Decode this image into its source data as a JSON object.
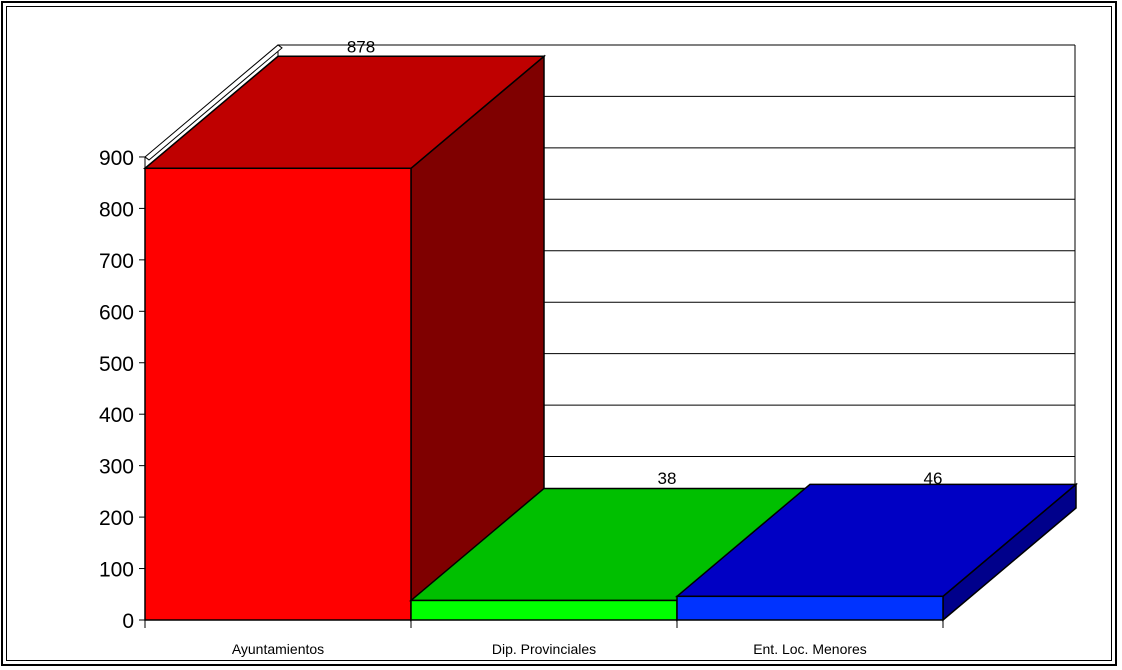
{
  "chart_data": {
    "type": "bar",
    "style": "3d",
    "categories": [
      "Ayuntamientos",
      "Dip. Provinciales",
      "Ent. Loc. Menores"
    ],
    "values": [
      878,
      38,
      46
    ],
    "data_labels": [
      "878",
      "38",
      "46"
    ],
    "colors": {
      "front": [
        "#ff0000",
        "#00ff00",
        "#0033ff"
      ],
      "top": [
        "#bf0000",
        "#00bf00",
        "#0000c4"
      ],
      "side": [
        "#7f0000",
        "#008000",
        "#00008b"
      ]
    },
    "ylim": [
      0,
      900
    ],
    "yticks": [
      "0",
      "100",
      "200",
      "300",
      "400",
      "500",
      "600",
      "700",
      "800",
      "900"
    ],
    "grid": true,
    "legend": "none",
    "title": "",
    "xlabel": "",
    "ylabel": ""
  }
}
